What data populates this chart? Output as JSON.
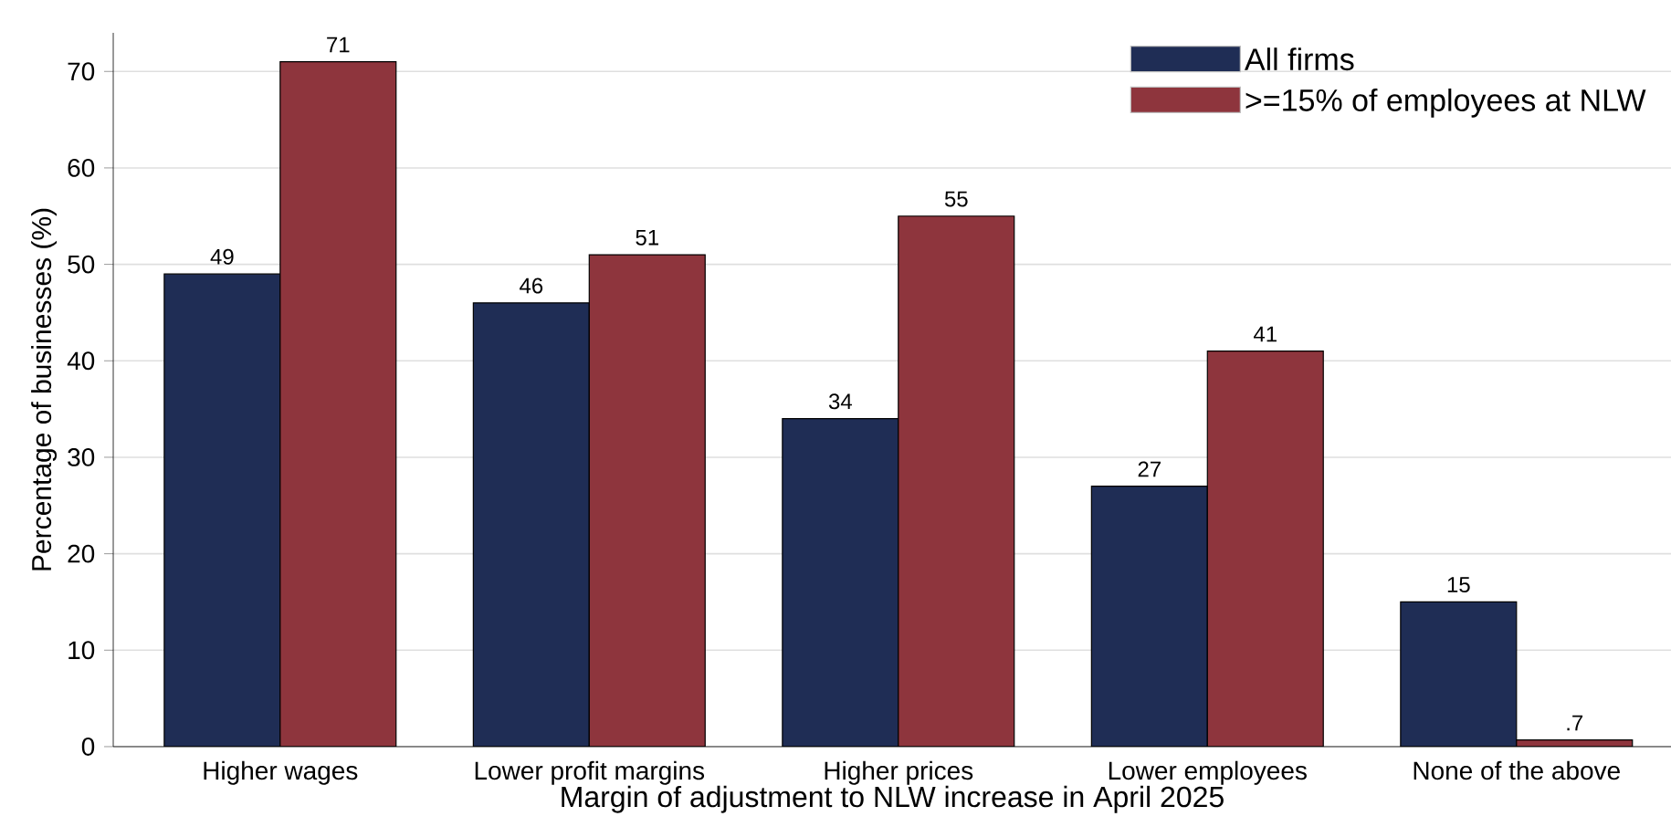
{
  "chart_data": {
    "type": "bar",
    "xlabel": "Margin of adjustment to NLW increase in April 2025",
    "ylabel": "Percentage of businesses (%)",
    "categories": [
      "Higher wages",
      "Lower profit margins",
      "Higher prices",
      "Lower employees",
      "None of the above"
    ],
    "series": [
      {
        "name": "All firms",
        "color": "#1f2d55",
        "values": [
          49,
          46,
          34,
          27,
          15
        ],
        "value_labels": [
          "49",
          "46",
          "34",
          "27",
          "15"
        ]
      },
      {
        "name": ">=15% of employees at NLW",
        "color": "#8e353d",
        "values": [
          71,
          51,
          55,
          41,
          0.7
        ],
        "value_labels": [
          "71",
          "51",
          "55",
          "41",
          ".7"
        ]
      }
    ],
    "ylim": [
      0,
      74
    ],
    "yticks": [
      0,
      10,
      20,
      30,
      40,
      50,
      60,
      70
    ],
    "grid": "y",
    "legend": "top right"
  }
}
